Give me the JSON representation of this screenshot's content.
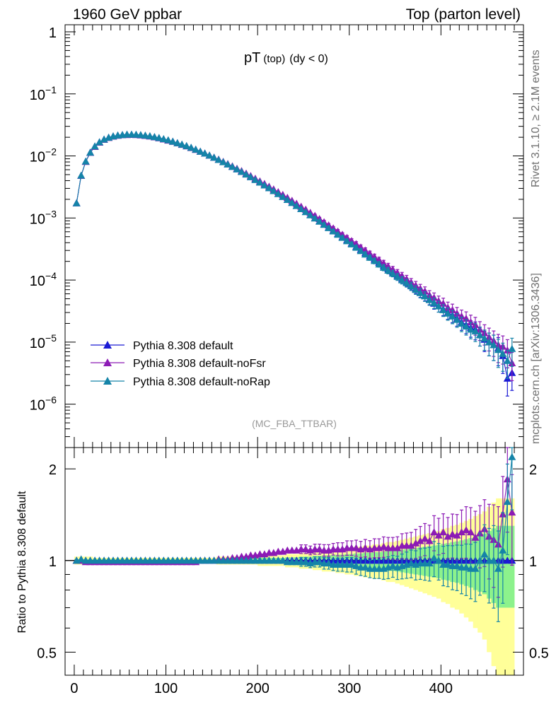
{
  "header": {
    "left": "1960 GeV ppbar",
    "right": "Top (parton level)"
  },
  "side_labels": {
    "rivet": "Rivet 3.1.10, ≥ 2.1M events",
    "mcplots": "mcplots.cern.ch [arXiv:1306.3436]"
  },
  "colors": {
    "default": "#1a1ad4",
    "noFsr": "#8c1bb5",
    "noRap": "#1584a8",
    "band_outer": "#ffff99",
    "band_inner": "#8cf28c"
  },
  "chart_data": [
    {
      "type": "line",
      "scale": "log",
      "title": "pT (top) (dy < 0)",
      "title_main": "pT",
      "title_sub": "(top)",
      "title_cond": "(dy < 0)",
      "watermark": "(MC_FBA_TTBAR)",
      "xlim": [
        -10,
        490
      ],
      "ylim": [
        2e-07,
        1.3
      ],
      "yticks": [
        {
          "value": 1,
          "base": "1",
          "exp": ""
        },
        {
          "value": 0.1,
          "base": "10",
          "exp": "−1"
        },
        {
          "value": 0.01,
          "base": "10",
          "exp": "−2"
        },
        {
          "value": 0.001,
          "base": "10",
          "exp": "−3"
        },
        {
          "value": 0.0001,
          "base": "10",
          "exp": "−4"
        },
        {
          "value": 1e-05,
          "base": "10",
          "exp": "−5"
        },
        {
          "value": 1e-06,
          "base": "10",
          "exp": "−6"
        }
      ],
      "x": [
        2.5,
        7.5,
        12.5,
        17.5,
        22.5,
        27.5,
        32.5,
        37.5,
        42.5,
        47.5,
        52.5,
        57.5,
        62.5,
        67.5,
        72.5,
        77.5,
        82.5,
        87.5,
        92.5,
        97.5,
        102.5,
        107.5,
        112.5,
        117.5,
        122.5,
        127.5,
        132.5,
        137.5,
        142.5,
        147.5,
        152.5,
        157.5,
        162.5,
        167.5,
        172.5,
        177.5,
        182.5,
        187.5,
        192.5,
        197.5,
        202.5,
        207.5,
        212.5,
        217.5,
        222.5,
        227.5,
        232.5,
        237.5,
        242.5,
        247.5,
        252.5,
        257.5,
        262.5,
        267.5,
        272.5,
        277.5,
        282.5,
        287.5,
        292.5,
        297.5,
        302.5,
        307.5,
        312.5,
        317.5,
        322.5,
        327.5,
        332.5,
        337.5,
        342.5,
        347.5,
        352.5,
        357.5,
        362.5,
        367.5,
        372.5,
        377.5,
        382.5,
        387.5,
        392.5,
        397.5,
        402.5,
        407.5,
        412.5,
        417.5,
        422.5,
        427.5,
        432.5,
        437.5,
        442.5,
        447.5,
        452.5,
        457.5,
        462.5,
        467.5,
        472.5,
        477.5
      ],
      "series": [
        {
          "name": "Pythia 8.308 default",
          "key": "default",
          "values": [
            0.00174,
            0.00482,
            0.00816,
            0.0114,
            0.0143,
            0.0167,
            0.0185,
            0.0198,
            0.0208,
            0.0215,
            0.0219,
            0.0221,
            0.0221,
            0.022,
            0.0217,
            0.0213,
            0.0208,
            0.0202,
            0.0195,
            0.0187,
            0.0179,
            0.0171,
            0.0162,
            0.0153,
            0.0145,
            0.0136,
            0.0127,
            0.0118,
            0.011,
            0.0102,
            0.00944,
            0.00871,
            0.00801,
            0.00734,
            0.00672,
            0.00612,
            0.00557,
            0.00506,
            0.00459,
            0.00415,
            0.00375,
            0.00338,
            0.00305,
            0.00274,
            0.00246,
            0.00221,
            0.00198,
            0.00177,
            0.00158,
            0.00141,
            0.00126,
            0.00113,
            0.001,
            0.000892,
            0.000796,
            0.000708,
            0.000629,
            0.000558,
            0.000496,
            0.00044,
            0.000391,
            0.000347,
            0.000309,
            0.000274,
            0.000244,
            0.000216,
            0.000191,
            0.000169,
            0.000151,
            0.000134,
            0.000119,
            0.000104,
            9.3e-05,
            8.2e-05,
            7.2e-05,
            6.3e-05,
            5.6e-05,
            4.9e-05,
            4.2e-05,
            3.8e-05,
            3.4e-05,
            3e-05,
            2.7e-05,
            2.4e-05,
            2.1e-05,
            1.9e-05,
            1.7e-05,
            1.6e-05,
            1.3e-05,
            1.1e-05,
            1e-05,
            9e-06,
            8e-06,
            6e-06,
            2.6e-06,
            3.2e-06
          ]
        },
        {
          "name": "Pythia 8.308 default-noFsr",
          "key": "noFsr",
          "values": [
            0.00174,
            0.00482,
            0.00808,
            0.0113,
            0.0141,
            0.0165,
            0.0183,
            0.0196,
            0.0206,
            0.0213,
            0.0217,
            0.0219,
            0.022,
            0.0219,
            0.0216,
            0.0212,
            0.0207,
            0.0201,
            0.0194,
            0.0186,
            0.0178,
            0.017,
            0.0161,
            0.0152,
            0.0144,
            0.0135,
            0.0126,
            0.0118,
            0.011,
            0.0102,
            0.00948,
            0.00878,
            0.00809,
            0.00745,
            0.00684,
            0.00626,
            0.00572,
            0.00523,
            0.00477,
            0.00433,
            0.00393,
            0.00356,
            0.00322,
            0.00291,
            0.00263,
            0.00237,
            0.00213,
            0.00191,
            0.00171,
            0.00153,
            0.00137,
            0.00122,
            0.00109,
            0.00097,
            0.000862,
            0.000766,
            0.000684,
            0.000608,
            0.00054,
            0.000482,
            0.000429,
            0.000382,
            0.000338,
            0.000301,
            0.000267,
            0.000237,
            0.000211,
            0.000187,
            0.000166,
            0.000148,
            0.000131,
            0.000117,
            0.000104,
            9.2e-05,
            8.2e-05,
            7.3e-05,
            6.6e-05,
            5.7e-05,
            5.2e-05,
            4.6e-05,
            4.2e-05,
            3.6e-05,
            3.3e-05,
            2.9e-05,
            2.6e-05,
            2.4e-05,
            2.1e-05,
            1.9e-05,
            1.6e-05,
            1.4e-05,
            1.2e-05,
            1.05e-05,
            9e-06,
            8.5e-06,
            7.4e-06,
            4.6e-06
          ]
        },
        {
          "name": "Pythia 8.308 default-noRap",
          "key": "noRap",
          "values": [
            0.00174,
            0.00485,
            0.00815,
            0.0114,
            0.0143,
            0.0167,
            0.0185,
            0.0198,
            0.0208,
            0.0215,
            0.0219,
            0.0222,
            0.0222,
            0.0221,
            0.0218,
            0.0214,
            0.0209,
            0.0203,
            0.0196,
            0.0188,
            0.018,
            0.0171,
            0.0162,
            0.0153,
            0.0145,
            0.0136,
            0.0127,
            0.0118,
            0.011,
            0.0102,
            0.00942,
            0.00869,
            0.00799,
            0.00733,
            0.0067,
            0.00611,
            0.00556,
            0.00505,
            0.00458,
            0.00414,
            0.00374,
            0.00337,
            0.00304,
            0.00273,
            0.00245,
            0.0022,
            0.00197,
            0.00176,
            0.00157,
            0.0014,
            0.00125,
            0.00111,
            0.000988,
            0.000878,
            0.000781,
            0.000692,
            0.000613,
            0.000541,
            0.000482,
            0.000425,
            0.000378,
            0.000334,
            0.000295,
            0.00026,
            0.00023,
            0.000204,
            0.00018,
            0.000159,
            0.000143,
            0.000128,
            0.000113,
            0.0001,
            9e-05,
            8e-05,
            7e-05,
            6.2e-05,
            5.5e-05,
            4.8e-05,
            4.3e-05,
            3.8e-05,
            3.3e-05,
            2.9e-05,
            2.6e-05,
            2.3e-05,
            2e-05,
            1.8e-05,
            1.6e-05,
            1.5e-05,
            1.3e-05,
            1.15e-05,
            1e-05,
            9e-06,
            7.5e-06,
            6.5e-06,
            5e-06,
            7.8e-06
          ]
        }
      ]
    },
    {
      "type": "line",
      "scale": "log",
      "ylabel": "Ratio to Pythia 8.308 default",
      "xlim": [
        -10,
        490
      ],
      "ylim": [
        0.42,
        2.35
      ],
      "yticks": [
        {
          "value": 2,
          "label": "2"
        },
        {
          "value": 1,
          "label": "1"
        },
        {
          "value": 0.5,
          "label": "0.5"
        }
      ],
      "xticks": [
        {
          "value": 0,
          "label": "0"
        },
        {
          "value": 100,
          "label": "100"
        },
        {
          "value": 200,
          "label": "200"
        },
        {
          "value": 300,
          "label": "300"
        },
        {
          "value": 400,
          "label": "400"
        }
      ],
      "x": [
        2.5,
        7.5,
        12.5,
        17.5,
        22.5,
        27.5,
        32.5,
        37.5,
        42.5,
        47.5,
        52.5,
        57.5,
        62.5,
        67.5,
        72.5,
        77.5,
        82.5,
        87.5,
        92.5,
        97.5,
        102.5,
        107.5,
        112.5,
        117.5,
        122.5,
        127.5,
        132.5,
        137.5,
        142.5,
        147.5,
        152.5,
        157.5,
        162.5,
        167.5,
        172.5,
        177.5,
        182.5,
        187.5,
        192.5,
        197.5,
        202.5,
        207.5,
        212.5,
        217.5,
        222.5,
        227.5,
        232.5,
        237.5,
        242.5,
        247.5,
        252.5,
        257.5,
        262.5,
        267.5,
        272.5,
        277.5,
        282.5,
        287.5,
        292.5,
        297.5,
        302.5,
        307.5,
        312.5,
        317.5,
        322.5,
        327.5,
        332.5,
        337.5,
        342.5,
        347.5,
        352.5,
        357.5,
        362.5,
        367.5,
        372.5,
        377.5,
        382.5,
        387.5,
        392.5,
        397.5,
        402.5,
        407.5,
        412.5,
        417.5,
        422.5,
        427.5,
        432.5,
        437.5,
        442.5,
        447.5,
        452.5,
        457.5,
        462.5,
        467.5,
        472.5,
        477.5
      ],
      "band_outer": [
        0.03,
        0.03,
        0.03,
        0.03,
        0.02,
        0.02,
        0.02,
        0.02,
        0.02,
        0.02,
        0.02,
        0.02,
        0.02,
        0.02,
        0.02,
        0.02,
        0.02,
        0.02,
        0.02,
        0.02,
        0.02,
        0.02,
        0.02,
        0.02,
        0.02,
        0.02,
        0.02,
        0.02,
        0.02,
        0.02,
        0.02,
        0.03,
        0.03,
        0.03,
        0.03,
        0.03,
        0.03,
        0.03,
        0.03,
        0.03,
        0.04,
        0.04,
        0.04,
        0.04,
        0.04,
        0.04,
        0.05,
        0.05,
        0.05,
        0.06,
        0.06,
        0.06,
        0.07,
        0.07,
        0.08,
        0.08,
        0.08,
        0.09,
        0.09,
        0.1,
        0.1,
        0.11,
        0.11,
        0.12,
        0.12,
        0.13,
        0.13,
        0.14,
        0.15,
        0.15,
        0.16,
        0.17,
        0.18,
        0.19,
        0.2,
        0.21,
        0.22,
        0.23,
        0.24,
        0.25,
        0.27,
        0.28,
        0.3,
        0.31,
        0.33,
        0.35,
        0.37,
        0.4,
        0.42,
        0.45,
        0.5,
        0.55,
        0.6,
        0.6,
        0.6,
        0.6
      ],
      "band_inner": [
        0.01,
        0.01,
        0.01,
        0.01,
        0.01,
        0.01,
        0.01,
        0.01,
        0.01,
        0.01,
        0.01,
        0.01,
        0.01,
        0.01,
        0.01,
        0.01,
        0.01,
        0.01,
        0.01,
        0.01,
        0.01,
        0.01,
        0.01,
        0.01,
        0.01,
        0.01,
        0.01,
        0.01,
        0.01,
        0.01,
        0.01,
        0.015,
        0.015,
        0.015,
        0.015,
        0.015,
        0.015,
        0.015,
        0.015,
        0.015,
        0.02,
        0.02,
        0.02,
        0.02,
        0.02,
        0.02,
        0.025,
        0.025,
        0.025,
        0.03,
        0.03,
        0.03,
        0.035,
        0.035,
        0.04,
        0.04,
        0.04,
        0.045,
        0.045,
        0.05,
        0.05,
        0.055,
        0.055,
        0.06,
        0.06,
        0.065,
        0.065,
        0.07,
        0.075,
        0.075,
        0.08,
        0.085,
        0.09,
        0.095,
        0.1,
        0.105,
        0.11,
        0.115,
        0.12,
        0.125,
        0.135,
        0.14,
        0.15,
        0.155,
        0.165,
        0.175,
        0.185,
        0.2,
        0.21,
        0.225,
        0.25,
        0.275,
        0.3,
        0.3,
        0.3,
        0.3
      ],
      "series": [
        {
          "name": "Pythia 8.308 default-noFsr",
          "key": "noFsr",
          "values": [
            1.0,
            1.0,
            0.99,
            0.99,
            0.99,
            0.99,
            0.99,
            0.99,
            0.99,
            0.99,
            0.99,
            0.99,
            0.99,
            0.99,
            0.99,
            0.99,
            0.99,
            0.99,
            0.99,
            0.99,
            0.99,
            0.99,
            0.99,
            0.99,
            0.99,
            0.99,
            0.99,
            1.0,
            1.0,
            1.0,
            1.0,
            1.01,
            1.01,
            1.01,
            1.02,
            1.02,
            1.03,
            1.03,
            1.04,
            1.04,
            1.05,
            1.05,
            1.06,
            1.06,
            1.07,
            1.07,
            1.08,
            1.08,
            1.08,
            1.09,
            1.09,
            1.08,
            1.09,
            1.09,
            1.08,
            1.08,
            1.09,
            1.09,
            1.09,
            1.1,
            1.1,
            1.1,
            1.09,
            1.1,
            1.09,
            1.1,
            1.1,
            1.11,
            1.1,
            1.1,
            1.1,
            1.12,
            1.12,
            1.12,
            1.14,
            1.16,
            1.18,
            1.16,
            1.24,
            1.21,
            1.24,
            1.2,
            1.22,
            1.21,
            1.24,
            1.26,
            1.24,
            1.19,
            1.23,
            1.27,
            1.2,
            1.17,
            1.13,
            1.42,
            1.85,
            1.44
          ]
        },
        {
          "name": "Pythia 8.308 default-noRap",
          "key": "noRap",
          "values": [
            1.0,
            1.01,
            1.0,
            1.0,
            1.0,
            1.0,
            1.0,
            1.0,
            1.0,
            1.0,
            1.0,
            1.0,
            1.0,
            1.0,
            1.0,
            1.0,
            1.0,
            1.0,
            1.0,
            1.0,
            1.0,
            1.0,
            1.0,
            1.0,
            1.0,
            1.0,
            1.0,
            1.0,
            1.0,
            1.0,
            1.0,
            1.0,
            1.0,
            1.0,
            1.0,
            1.0,
            1.0,
            1.0,
            1.0,
            1.0,
            1.0,
            1.0,
            1.0,
            1.0,
            1.0,
            1.0,
            0.99,
            0.99,
            0.99,
            0.99,
            0.99,
            0.98,
            0.99,
            0.99,
            0.98,
            0.98,
            0.97,
            0.97,
            0.97,
            0.97,
            0.97,
            0.96,
            0.95,
            0.95,
            0.94,
            0.94,
            0.94,
            0.94,
            0.95,
            0.96,
            0.95,
            0.96,
            0.97,
            0.98,
            0.97,
            0.98,
            0.98,
            0.98,
            1.02,
            1.0,
            0.97,
            0.97,
            0.96,
            0.96,
            0.95,
            0.95,
            0.94,
            0.94,
            1.0,
            1.05,
            1.0,
            1.0,
            0.94,
            1.08,
            1.56,
            2.19
          ]
        }
      ]
    }
  ]
}
